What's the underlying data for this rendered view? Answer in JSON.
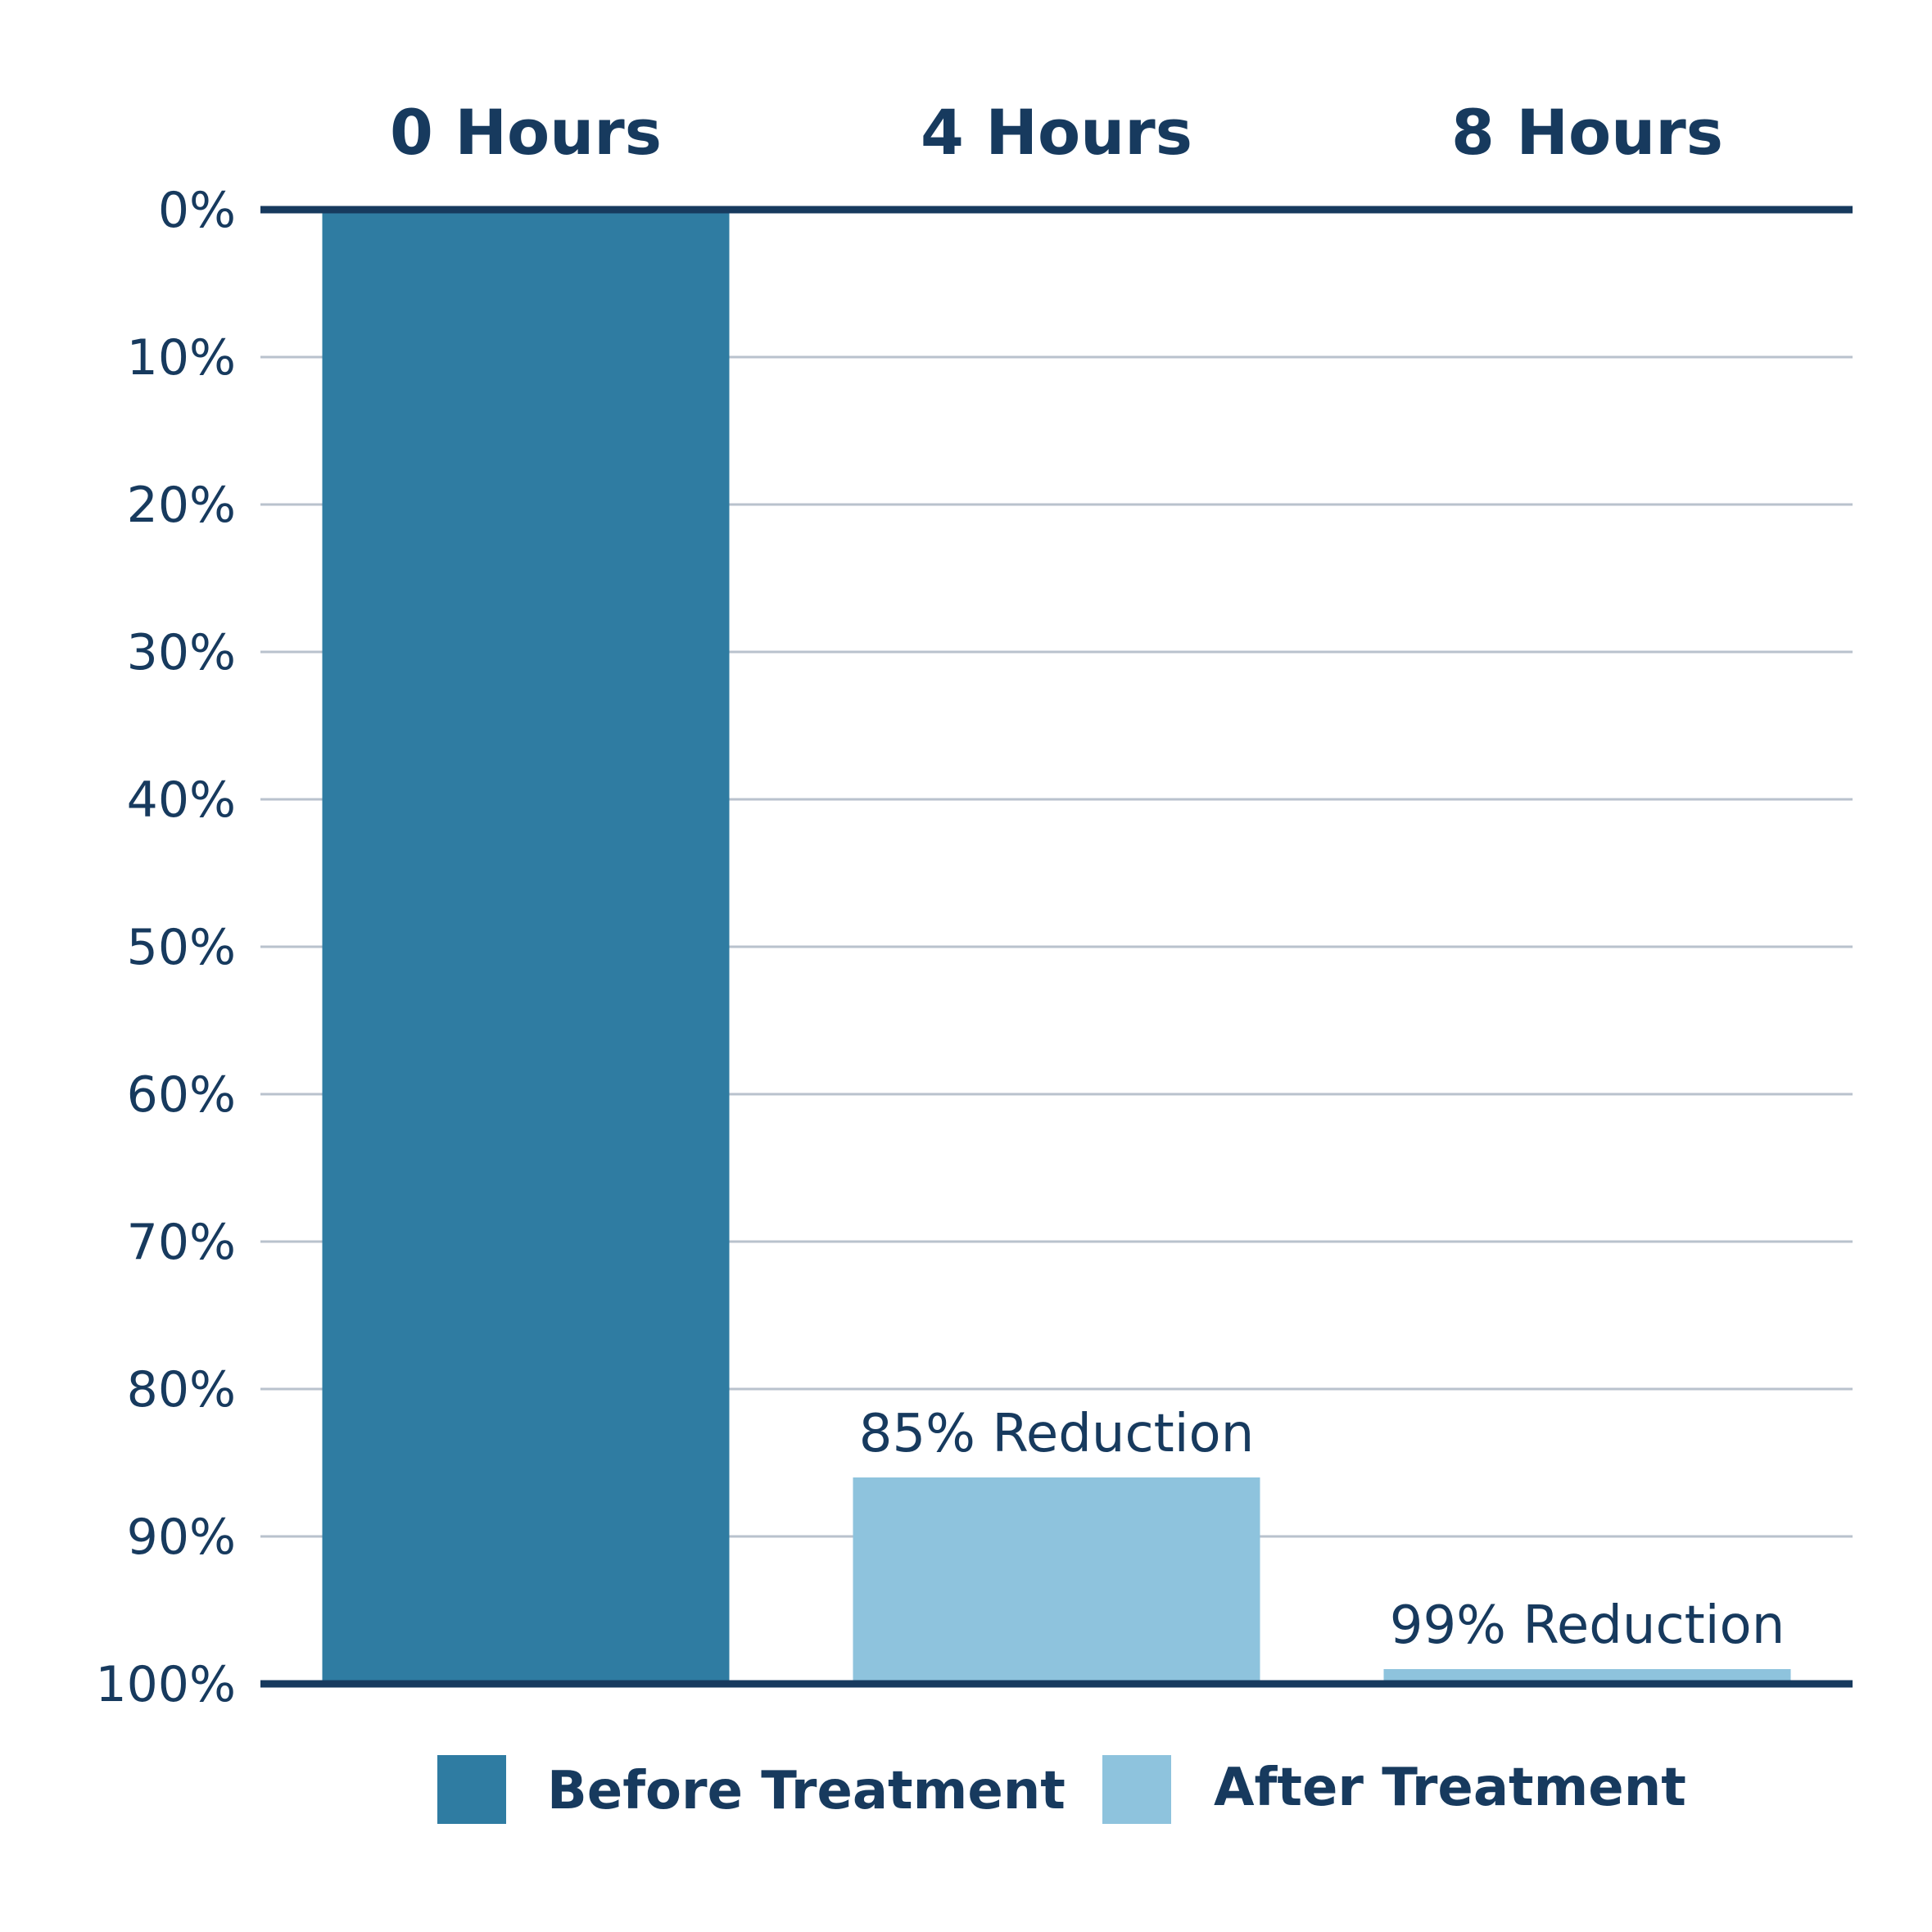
{
  "chart_data": {
    "type": "bar",
    "categories": [
      "0 Hours",
      "4 Hours",
      "8 Hours"
    ],
    "y_ticks": [
      "0%",
      "10%",
      "20%",
      "30%",
      "40%",
      "50%",
      "60%",
      "70%",
      "80%",
      "90%",
      "100%"
    ],
    "ylim": [
      0,
      100
    ],
    "y_axis_inverted": true,
    "grid": true,
    "series": [
      {
        "name": "Before Treatment",
        "values": [
          100,
          null,
          null
        ],
        "color": "#2f7ca2"
      },
      {
        "name": "After Treatment",
        "values": [
          null,
          14,
          1
        ],
        "color": "#8ec3dd"
      }
    ],
    "data_labels": [
      "",
      "85% Reduction",
      "99% Reduction"
    ],
    "legend_position": "bottom",
    "colors": {
      "text": "#173a5e",
      "axis": "#173a5e",
      "grid": "#b9c2cd"
    }
  }
}
